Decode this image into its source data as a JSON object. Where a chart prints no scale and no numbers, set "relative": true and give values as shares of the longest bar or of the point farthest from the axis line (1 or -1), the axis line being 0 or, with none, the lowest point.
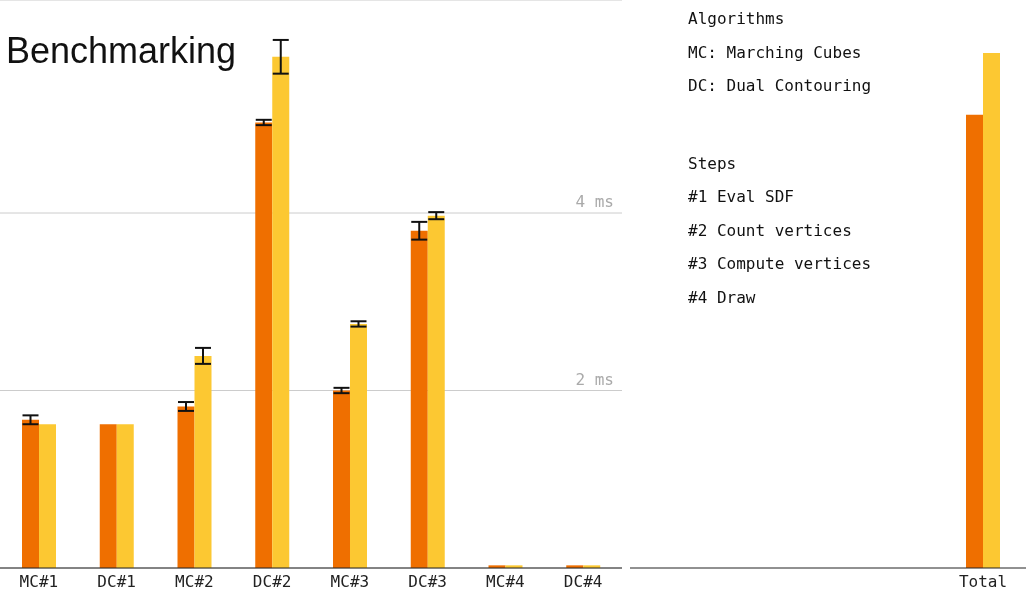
{
  "chart_data": [
    {
      "type": "bar",
      "title": "Benchmarking",
      "categories": [
        "MC#1",
        "DC#1",
        "MC#2",
        "DC#2",
        "MC#3",
        "DC#3",
        "MC#4",
        "DC#4"
      ],
      "series": [
        {
          "color": "#ef6f00",
          "values": [
            1.67,
            1.62,
            1.82,
            5.02,
            2.0,
            3.8,
            0.03,
            0.03
          ],
          "errors": [
            0.05,
            null,
            0.05,
            0.03,
            0.03,
            0.1,
            null,
            null
          ]
        },
        {
          "color": "#fcc832",
          "values": [
            1.62,
            1.62,
            2.39,
            5.76,
            2.75,
            3.97,
            0.03,
            0.03
          ],
          "errors": [
            null,
            null,
            0.09,
            0.19,
            0.03,
            0.04,
            null,
            null
          ]
        }
      ],
      "ylim": [
        0,
        6.4
      ],
      "yticks": [
        {
          "value": 2,
          "label": "2 ms"
        },
        {
          "value": 4,
          "label": "4 ms"
        }
      ],
      "grid": "y",
      "annotations": [
        "Algorithms",
        "MC: Marching Cubes",
        "DC: Dual Contouring",
        "Steps",
        "#1 Eval SDF",
        "#2 Count vertices",
        "#3 Compute vertices",
        "#4 Draw"
      ]
    },
    {
      "type": "bar",
      "relative": true,
      "categories": [
        "Total"
      ],
      "series": [
        {
          "color": "#ef6f00",
          "values": [
            0.88
          ]
        },
        {
          "color": "#fcc832",
          "values": [
            1
          ]
        }
      ]
    }
  ]
}
